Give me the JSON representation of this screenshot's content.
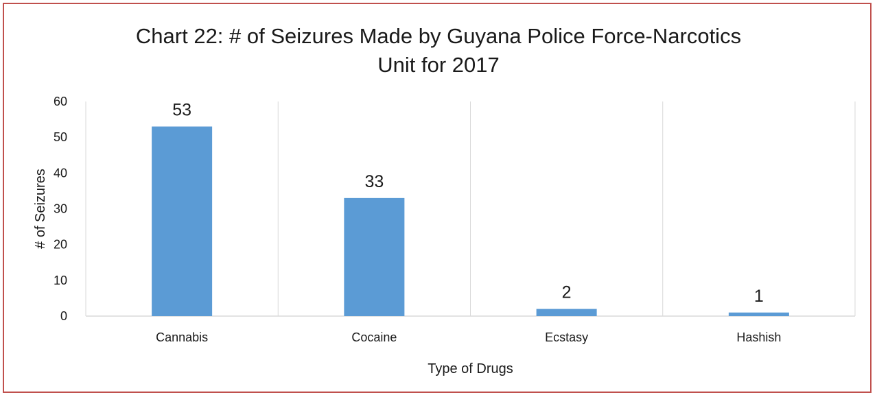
{
  "chart_data": {
    "type": "bar",
    "title_lines": [
      "Chart 22: # of Seizures Made by Guyana Police Force-Narcotics",
      "Unit for 2017"
    ],
    "categories": [
      "Cannabis",
      "Cocaine",
      "Ecstasy",
      "Hashish"
    ],
    "values": [
      53,
      33,
      2,
      1
    ],
    "data_labels": [
      "53",
      "33",
      "2",
      "1"
    ],
    "xlabel": "Type of Drugs",
    "ylabel": "# of Seizures",
    "ylim": [
      0,
      60
    ],
    "yticks": [
      0,
      10,
      20,
      30,
      40,
      50,
      60
    ],
    "grid": "vertical category separators",
    "legend": "none",
    "bar_color": "#5b9bd5",
    "border_color": "#c0504d"
  }
}
